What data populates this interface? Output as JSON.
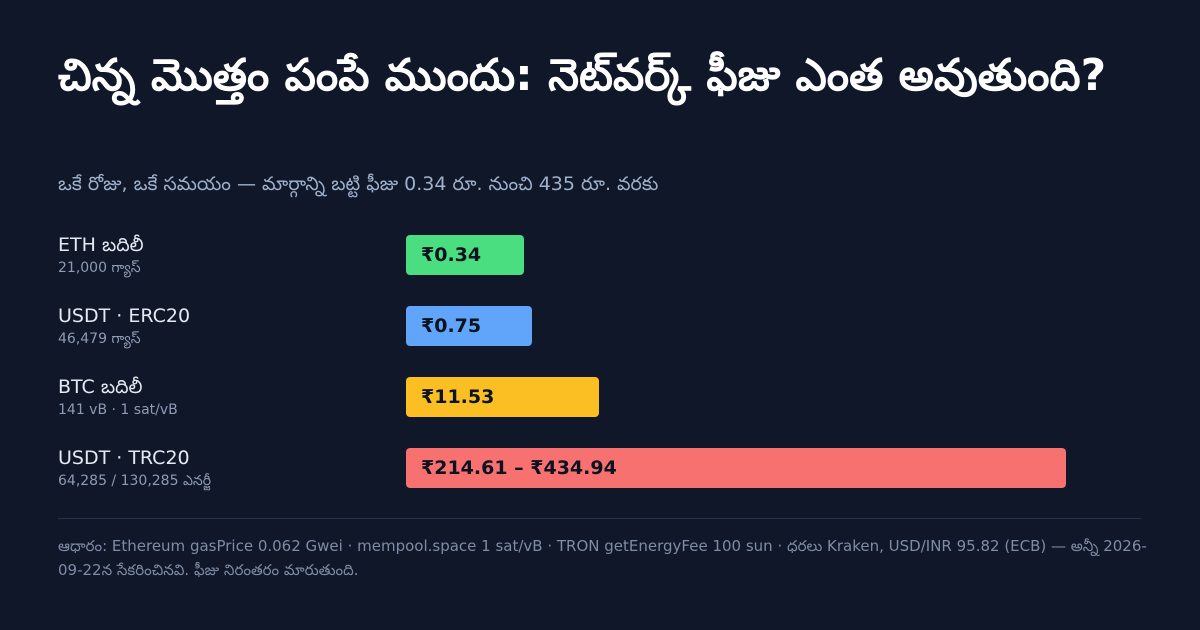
{
  "colors": {
    "background": "#0f1729",
    "green": "#4ade80",
    "blue": "#60a5fa",
    "yellow": "#fbbf24",
    "red": "#f87171"
  },
  "chart_data": {
    "type": "bar",
    "orientation": "horizontal",
    "title": "చిన్న మొత్తం పంపే ముందు: నెట్‌వర్క్ ఫీజు ఎంత అవుతుంది?",
    "subtitle": "ఒకే రోజు, ఒకే సమయం — మార్గాన్ని బట్టి ఫీజు 0.34 రూ. నుంచి 435 రూ. వరకు",
    "xlim": [
      0,
      434.94
    ],
    "xlabel": "",
    "ylabel": "",
    "grid": false,
    "categories": [
      "ETH బదిలీ",
      "USDT · ERC20",
      "BTC బదిలీ",
      "USDT · TRC20"
    ],
    "sublabels": [
      "21,000 గ్యాస్",
      "46,479 గ్యాస్",
      "141 vB · 1 sat/vB",
      "64,285 / 130,285 ఎనర్జీ"
    ],
    "bar_labels": [
      "₹0.34",
      "₹0.75",
      "₹11.53",
      "₹214.61 – ₹434.94"
    ],
    "values": [
      0.34,
      0.75,
      11.53,
      434.94
    ],
    "ranges": [
      null,
      null,
      null,
      [
        214.61,
        434.94
      ]
    ],
    "bar_colors": [
      "#4ade80",
      "#60a5fa",
      "#fbbf24",
      "#f87171"
    ]
  },
  "source": "ఆధారం: Ethereum gasPrice 0.062 Gwei · mempool.space 1 sat/vB · TRON getEnergyFee 100 sun · ధరలు Kraken, USD/INR 95.82 (ECB) — అన్నీ 2026-09-22న సేకరించినవి. ఫీజు నిరంతరం మారుతుంది."
}
